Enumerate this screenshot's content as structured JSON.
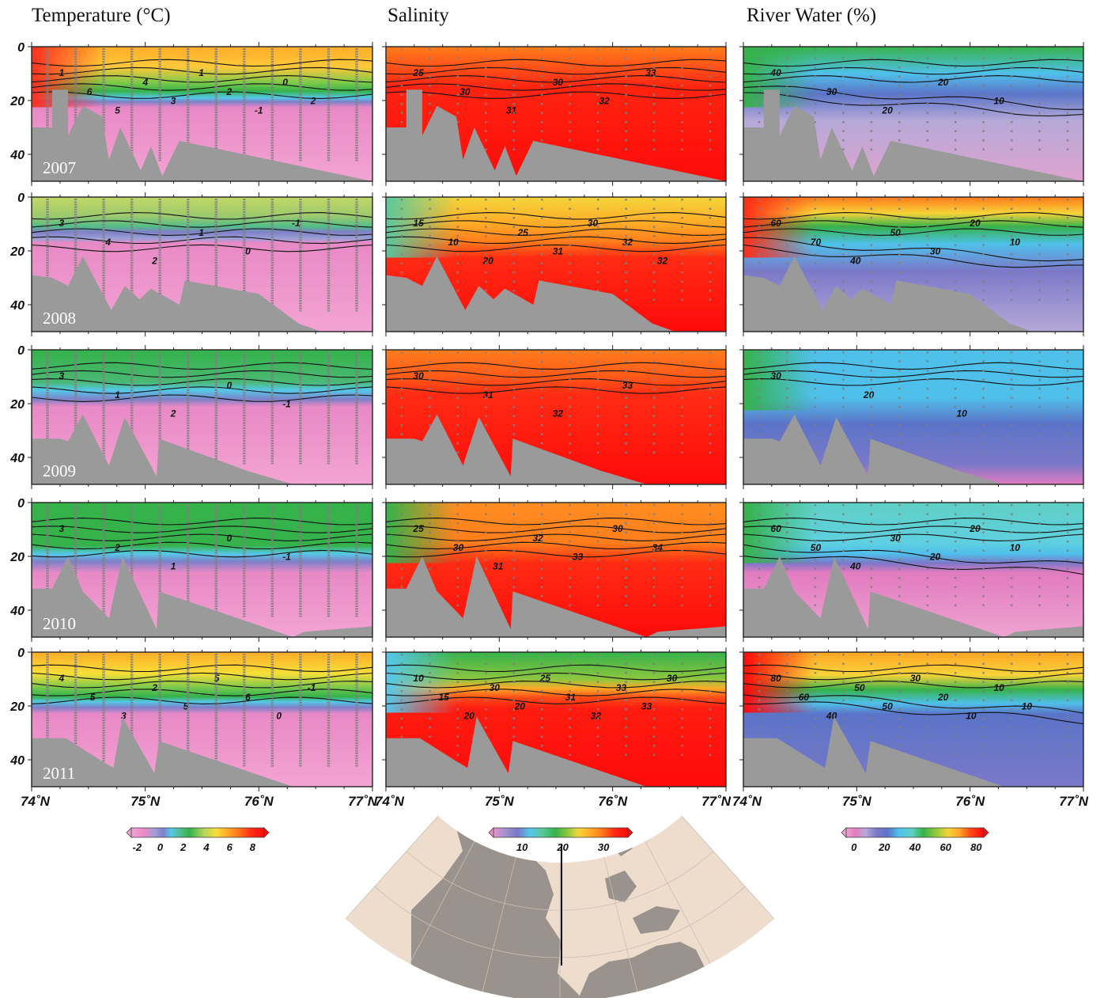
{
  "column_titles": [
    "Temperature (°C)",
    "Salinity",
    "River Water (%)"
  ],
  "x_tick_labels": [
    "74˚N",
    "75˚N",
    "76˚N",
    "77˚N"
  ],
  "colors": {
    "bathymetry": "#9b9a9a",
    "map_land": "#9a928c",
    "map_sea": "#eedccd"
  },
  "chart_data": {
    "type": "heatmap",
    "layout": "5 rows (years) x 3 columns (variables), transects along latitude",
    "years": [
      "2007",
      "2008",
      "2009",
      "2010",
      "2011"
    ],
    "x": {
      "label": "",
      "ticks": [
        74,
        75,
        76,
        77
      ],
      "tick_labels": [
        "74˚N",
        "75˚N",
        "76˚N",
        "77˚N"
      ],
      "range": [
        74,
        77
      ]
    },
    "y": {
      "label": "",
      "ticks": [
        0,
        20,
        40
      ],
      "tick_labels": [
        "0",
        "20",
        "40"
      ],
      "range": [
        0,
        50
      ],
      "inverted": true
    },
    "variables": [
      {
        "name": "Temperature (°C)",
        "colorbar": {
          "ticks": [
            -2,
            0,
            2,
            4,
            6,
            8
          ],
          "range": [
            -2.5,
            9
          ]
        },
        "panels": {
          "2007": {
            "contour_labels": [
              "1",
              "6",
              "5",
              "4",
              "3",
              "1",
              "2",
              "-1",
              "0",
              "2"
            ]
          },
          "2008": {
            "contour_labels": [
              "3",
              "4",
              "2",
              "1",
              "0",
              "-1"
            ]
          },
          "2009": {
            "contour_labels": [
              "3",
              "1",
              "2",
              "0",
              "-1"
            ]
          },
          "2010": {
            "contour_labels": [
              "3",
              "2",
              "1",
              "0",
              "-1"
            ]
          },
          "2011": {
            "contour_labels": [
              "4",
              "5",
              "3",
              "2",
              "5",
              "5",
              "6",
              "0",
              "-1"
            ]
          }
        }
      },
      {
        "name": "Salinity",
        "colorbar": {
          "ticks": [
            10,
            20,
            30
          ],
          "range": [
            3,
            36
          ]
        },
        "panels": {
          "2007": {
            "contour_labels": [
              "25",
              "30",
              "31",
              "30",
              "32",
              "33"
            ]
          },
          "2008": {
            "contour_labels": [
              "15",
              "10",
              "20",
              "25",
              "31",
              "30",
              "32",
              "32"
            ]
          },
          "2009": {
            "contour_labels": [
              "30",
              "31",
              "32",
              "33"
            ]
          },
          "2010": {
            "contour_labels": [
              "25",
              "30",
              "31",
              "32",
              "33",
              "30",
              "34"
            ]
          },
          "2011": {
            "contour_labels": [
              "10",
              "15",
              "20",
              "30",
              "20",
              "25",
              "31",
              "32",
              "33",
              "33",
              "30"
            ]
          }
        }
      },
      {
        "name": "River Water (%)",
        "colorbar": {
          "ticks": [
            0,
            20,
            40,
            60,
            80
          ],
          "range": [
            -5,
            85
          ]
        },
        "panels": {
          "2007": {
            "contour_labels": [
              "40",
              "30",
              "20",
              "20",
              "10"
            ]
          },
          "2008": {
            "contour_labels": [
              "60",
              "70",
              "40",
              "50",
              "30",
              "20",
              "10"
            ]
          },
          "2009": {
            "contour_labels": [
              "30",
              "20",
              "10"
            ]
          },
          "2010": {
            "contour_labels": [
              "60",
              "50",
              "40",
              "30",
              "20",
              "20",
              "10"
            ]
          },
          "2011": {
            "contour_labels": [
              "80",
              "60",
              "40",
              "50",
              "50",
              "30",
              "20",
              "10",
              "10",
              "10"
            ]
          }
        }
      }
    ]
  }
}
